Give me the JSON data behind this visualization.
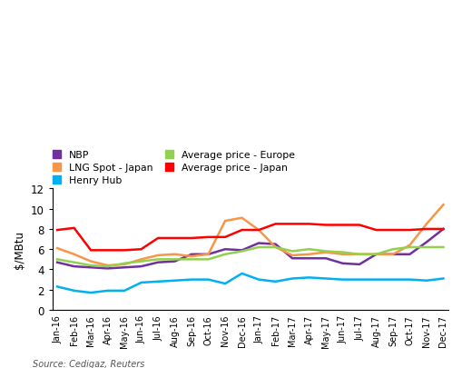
{
  "labels": [
    "Jan-16",
    "Feb-16",
    "Mar-16",
    "Apr-16",
    "May-16",
    "Jun-16",
    "Jul-16",
    "Aug-16",
    "Sep-16",
    "Oct-16",
    "Nov-16",
    "Dec-16",
    "Jan-17",
    "Feb-17",
    "Mar-17",
    "Apr-17",
    "May-17",
    "Jun-17",
    "Jul-17",
    "Aug-17",
    "Sep-17",
    "Oct-17",
    "Nov-17",
    "Dec-17"
  ],
  "NBP": [
    4.7,
    4.3,
    4.2,
    4.1,
    4.2,
    4.3,
    4.7,
    4.8,
    5.5,
    5.5,
    6.0,
    5.9,
    6.6,
    6.5,
    5.1,
    5.1,
    5.1,
    4.6,
    4.5,
    5.5,
    5.5,
    5.5,
    6.7,
    8.0
  ],
  "LNG_Spot_Japan": [
    6.1,
    5.5,
    4.8,
    4.4,
    4.5,
    5.0,
    5.4,
    5.5,
    5.3,
    5.5,
    8.8,
    9.1,
    7.9,
    6.2,
    5.4,
    5.5,
    5.7,
    5.5,
    5.5,
    5.5,
    5.5,
    6.4,
    8.5,
    10.4
  ],
  "Henry_Hub": [
    2.3,
    1.9,
    1.7,
    1.9,
    1.9,
    2.7,
    2.8,
    2.9,
    3.0,
    3.0,
    2.6,
    3.6,
    3.0,
    2.8,
    3.1,
    3.2,
    3.1,
    3.0,
    3.0,
    3.0,
    3.0,
    3.0,
    2.9,
    3.1
  ],
  "Avg_price_Europe": [
    5.0,
    4.7,
    4.4,
    4.3,
    4.6,
    4.8,
    5.0,
    5.0,
    5.0,
    5.0,
    5.5,
    5.8,
    6.2,
    6.2,
    5.8,
    6.0,
    5.8,
    5.7,
    5.5,
    5.5,
    6.0,
    6.2,
    6.2,
    6.2
  ],
  "Avg_price_Japan": [
    7.9,
    8.1,
    5.9,
    5.9,
    5.9,
    6.0,
    7.1,
    7.1,
    7.1,
    7.2,
    7.2,
    7.9,
    7.9,
    8.5,
    8.5,
    8.5,
    8.4,
    8.4,
    8.4,
    7.9,
    7.9,
    7.9,
    8.0,
    8.0
  ],
  "colors": {
    "NBP": "#7030a0",
    "LNG_Spot_Japan": "#f79646",
    "Henry_Hub": "#00b0f0",
    "Avg_price_Europe": "#92d050",
    "Avg_price_Japan": "#ff0000"
  },
  "ylabel": "$/MBtu",
  "ylim": [
    0,
    12
  ],
  "yticks": [
    0,
    2,
    4,
    6,
    8,
    10,
    12
  ],
  "source": "Source: Cedigaz, Reuters",
  "legend_labels": [
    "NBP",
    "LNG Spot - Japan",
    "Henry Hub",
    "Average price - Europe",
    "Average price - Japan"
  ],
  "legend_keys": [
    "NBP",
    "LNG_Spot_Japan",
    "Henry_Hub",
    "Avg_price_Europe",
    "Avg_price_Japan"
  ]
}
